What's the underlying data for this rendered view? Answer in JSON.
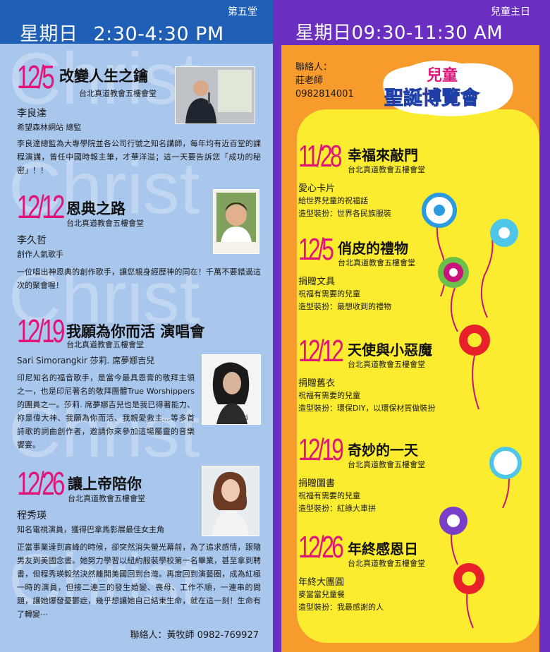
{
  "left": {
    "hall": "第五堂",
    "day": "星期日",
    "time": "2:30-4:30 PM",
    "watermark": [
      "Christ",
      "Christ",
      "Christ",
      "Christ",
      "Christ"
    ],
    "events": [
      {
        "date": "12/5",
        "title": "改變人生之鑰",
        "location": "台北真道教會五樓會堂",
        "name": "李良達",
        "subtitle": "希望森林網站 總監",
        "desc": "李良達總監為大專學院並各公司行號之知名講師，每年均有近百堂的課程演講，曾任中國時報主筆，才華洋溢；這一天要告訴您「成功的秘密」！！"
      },
      {
        "date": "12/12",
        "title": "恩典之路",
        "location": "台北真道教會五樓會堂",
        "name": "李久哲",
        "subtitle": "創作人氣歌手",
        "desc": "一位唱出神恩典的創作歌手，讓您親身經歷神的同在！千萬不要錯過這次的聚會喔！"
      },
      {
        "date": "12/19",
        "title": "我願為你而活  演唱會",
        "location": "台北真道教會五樓會堂",
        "name": "Sari Simorangkir 莎莉. 席夢娜吉兒",
        "desc": "印尼知名的福音歌手，是當今最具恩膏的敬拜主領之一，也是印尼著名的敬拜團體True Worshippers的團員之一。莎莉. 席夢娜吉兒也是我已得著能力、祢是偉大神、我願為你而活、我親愛救主...等多首詩歌的詞曲創作者，邀請你來參加這場屬靈的音樂饗宴。"
      },
      {
        "date": "12/26",
        "title": "讓上帝陪你",
        "location": "台北真道教會五樓會堂",
        "name": "程秀瑛",
        "subtitle": "知名電視演員，獲得巴拿馬影展最佳女主角",
        "desc": "正當事業達到高峰的時候，卻突然消失螢光幕前，為了追求感情，跟隨男友到美國念書。她努力學習以紐約服裝學校第一名畢業，甚至拿到聘書，但程秀瑛毅然決然離開美國回到台灣。再度回到演藝圈，成為紅極一時的演員，但接二連三的發生婚變、喪母、工作不順，一連串的問題，讓她爆發憂鬱症，幾乎想讓她自己結束生命，就在這一刻！生命有了轉變⋯"
      }
    ],
    "contact": "聯絡人：黃牧師  0982-769927"
  },
  "right": {
    "hall": "兒童主日",
    "day": "星期日",
    "time": "09:30-11:30 AM",
    "contact_label": "聯絡人：",
    "contact_name": "莊老師",
    "contact_phone": "0982814001",
    "logo_top": "兒童",
    "logo_bottom": "聖誕博覽會",
    "events": [
      {
        "date": "11/28",
        "title": "幸福來敲門",
        "location": "台北真道教會五樓會堂",
        "name": "愛心卡片",
        "line1": "給世界兒童的祝福話",
        "line2": "造型裝扮：世界各民族服裝"
      },
      {
        "date": "12/5",
        "title": "俏皮的禮物",
        "location": "台北真道教會五樓會堂",
        "name": "捐贈文具",
        "line1": "祝福有需要的兒童",
        "line2": "造型裝扮：最想收到的禮物"
      },
      {
        "date": "12/12",
        "title": "天使與小惡魔",
        "location": "台北真道教會五樓會堂",
        "name": "捐贈舊衣",
        "line1": "祝福有需要的兒童",
        "line2": "造型裝扮：環保DIY，以環保材質做裝扮"
      },
      {
        "date": "12/19",
        "title": "奇妙的一天",
        "location": "台北真道教會五樓會堂",
        "name": "捐贈圖書",
        "line1": "祝福有需要的兒童",
        "line2": "造型裝扮：紅綠大車拼"
      },
      {
        "date": "12/26",
        "title": "年終感恩日",
        "location": "台北真道教會五樓會堂",
        "name": "年終大團圓",
        "line1": "麥當當兒童餐",
        "line2": "造型裝扮：我最感謝的人"
      }
    ]
  },
  "colors": {
    "left_bg": "#a9c6ec",
    "left_header": "#1f5fb6",
    "right_header": "#6a2fc0",
    "orange": "#f79b2c",
    "yellow": "#fbec2f",
    "date_magenta": "#e0157a"
  }
}
